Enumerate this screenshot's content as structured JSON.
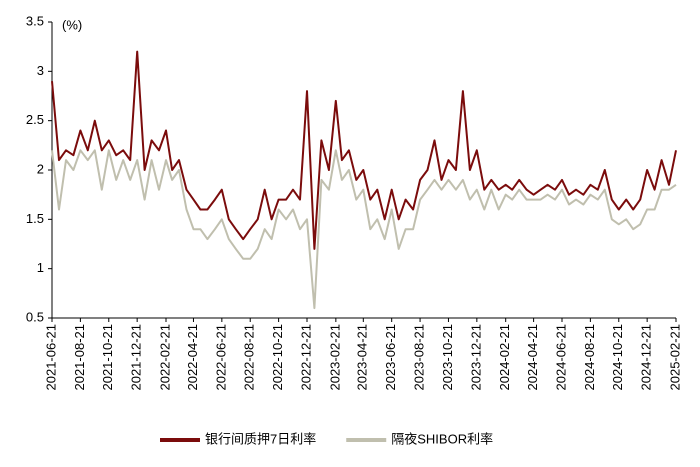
{
  "chart_data": {
    "type": "line",
    "annotations": [
      "(%)"
    ],
    "x": [
      "2021-06-21",
      "2021-07-06",
      "2021-07-21",
      "2021-08-06",
      "2021-08-21",
      "2021-09-06",
      "2021-09-21",
      "2021-10-06",
      "2021-10-21",
      "2021-11-06",
      "2021-11-21",
      "2021-12-06",
      "2021-12-21",
      "2022-01-06",
      "2022-01-21",
      "2022-02-06",
      "2022-02-21",
      "2022-03-06",
      "2022-03-21",
      "2022-04-06",
      "2022-04-21",
      "2022-05-06",
      "2022-05-21",
      "2022-06-06",
      "2022-06-21",
      "2022-07-06",
      "2022-07-21",
      "2022-08-06",
      "2022-08-21",
      "2022-09-06",
      "2022-09-21",
      "2022-10-06",
      "2022-10-21",
      "2022-11-06",
      "2022-11-21",
      "2022-12-06",
      "2022-12-21",
      "2023-01-06",
      "2023-01-21",
      "2023-02-06",
      "2023-02-21",
      "2023-03-06",
      "2023-03-21",
      "2023-04-06",
      "2023-04-21",
      "2023-05-06",
      "2023-05-21",
      "2023-06-06",
      "2023-06-21",
      "2023-07-06",
      "2023-07-21",
      "2023-08-06",
      "2023-08-21",
      "2023-09-06",
      "2023-09-21",
      "2023-10-06",
      "2023-10-21",
      "2023-11-06",
      "2023-11-21",
      "2023-12-06",
      "2023-12-21",
      "2024-01-06",
      "2024-01-21",
      "2024-02-06",
      "2024-02-21",
      "2024-03-06",
      "2024-03-21",
      "2024-04-06",
      "2024-04-21",
      "2024-05-06",
      "2024-05-21",
      "2024-06-06",
      "2024-06-21",
      "2024-07-06",
      "2024-07-21",
      "2024-08-06",
      "2024-08-21",
      "2024-09-06",
      "2024-09-21",
      "2024-10-06",
      "2024-10-21",
      "2024-11-06",
      "2024-11-21",
      "2024-12-06",
      "2024-12-21",
      "2025-01-06",
      "2025-01-21",
      "2025-02-06",
      "2025-02-21"
    ],
    "series": [
      {
        "name": "银行间质押7日利率",
        "color": "#7b0c0c",
        "values": [
          2.9,
          2.1,
          2.2,
          2.15,
          2.4,
          2.2,
          2.5,
          2.2,
          2.3,
          2.15,
          2.2,
          2.1,
          3.2,
          2.0,
          2.3,
          2.2,
          2.4,
          2.0,
          2.1,
          1.8,
          1.7,
          1.6,
          1.6,
          1.7,
          1.8,
          1.5,
          1.4,
          1.3,
          1.4,
          1.5,
          1.8,
          1.5,
          1.7,
          1.7,
          1.8,
          1.7,
          2.8,
          1.2,
          2.3,
          2.0,
          2.7,
          2.1,
          2.2,
          1.9,
          2.0,
          1.7,
          1.8,
          1.5,
          1.8,
          1.5,
          1.7,
          1.6,
          1.9,
          2.0,
          2.3,
          1.9,
          2.1,
          2.0,
          2.8,
          2.0,
          2.2,
          1.8,
          1.9,
          1.8,
          1.85,
          1.8,
          1.9,
          1.8,
          1.75,
          1.8,
          1.85,
          1.8,
          1.9,
          1.75,
          1.8,
          1.75,
          1.85,
          1.8,
          2.0,
          1.7,
          1.6,
          1.7,
          1.6,
          1.7,
          2.0,
          1.8,
          2.1,
          1.85,
          2.2
        ]
      },
      {
        "name": "隔夜SHIBOR利率",
        "color": "#c0bfae",
        "values": [
          2.2,
          1.6,
          2.1,
          2.0,
          2.2,
          2.1,
          2.2,
          1.8,
          2.2,
          1.9,
          2.1,
          1.9,
          2.1,
          1.7,
          2.1,
          1.8,
          2.1,
          1.9,
          2.0,
          1.6,
          1.4,
          1.4,
          1.3,
          1.4,
          1.5,
          1.3,
          1.2,
          1.1,
          1.1,
          1.2,
          1.4,
          1.3,
          1.6,
          1.5,
          1.6,
          1.4,
          1.5,
          0.6,
          1.9,
          1.8,
          2.2,
          1.9,
          2.0,
          1.7,
          1.8,
          1.4,
          1.5,
          1.3,
          1.6,
          1.2,
          1.4,
          1.4,
          1.7,
          1.8,
          1.9,
          1.8,
          1.9,
          1.8,
          1.9,
          1.7,
          1.8,
          1.6,
          1.8,
          1.6,
          1.75,
          1.7,
          1.8,
          1.7,
          1.7,
          1.7,
          1.75,
          1.7,
          1.8,
          1.65,
          1.7,
          1.65,
          1.75,
          1.7,
          1.8,
          1.5,
          1.45,
          1.5,
          1.4,
          1.45,
          1.6,
          1.6,
          1.8,
          1.8,
          1.85
        ]
      }
    ],
    "xlim": [
      "2021-06-21",
      "2025-02-21"
    ],
    "xticks": [
      "2021-06-21",
      "2021-08-21",
      "2021-10-21",
      "2021-12-21",
      "2022-02-21",
      "2022-04-21",
      "2022-06-21",
      "2022-08-21",
      "2022-10-21",
      "2022-12-21",
      "2023-02-21",
      "2023-04-21",
      "2023-06-21",
      "2023-08-21",
      "2023-10-21",
      "2023-12-21",
      "2024-02-21",
      "2024-04-21",
      "2024-06-21",
      "2024-08-21",
      "2024-10-21",
      "2024-12-21",
      "2025-02-21"
    ],
    "ylim": [
      0.5,
      3.5
    ],
    "yticks": [
      0.5,
      1,
      1.5,
      2,
      2.5,
      3,
      3.5
    ],
    "grid": false,
    "legend": "bottom"
  }
}
